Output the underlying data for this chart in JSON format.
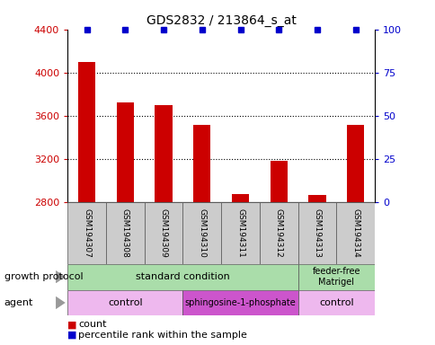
{
  "title": "GDS2832 / 213864_s_at",
  "samples": [
    "GSM194307",
    "GSM194308",
    "GSM194309",
    "GSM194310",
    "GSM194311",
    "GSM194312",
    "GSM194313",
    "GSM194314"
  ],
  "counts": [
    4100,
    3720,
    3700,
    3510,
    2870,
    3180,
    2860,
    3510
  ],
  "percentile_ranks": [
    100,
    100,
    100,
    100,
    100,
    100,
    100,
    100
  ],
  "ylim_left": [
    2800,
    4400
  ],
  "yticks_left": [
    2800,
    3200,
    3600,
    4000,
    4400
  ],
  "ylim_right": [
    0,
    100
  ],
  "yticks_right": [
    0,
    25,
    50,
    75,
    100
  ],
  "bar_color": "#cc0000",
  "dot_color": "#0000cc",
  "sample_box_color": "#cccccc",
  "growth_protocol_color": "#aaddaa",
  "agent_color_light": "#eeb8ee",
  "agent_color_dark": "#cc55cc",
  "legend_count_color": "#cc0000",
  "legend_dot_color": "#0000cc",
  "arrow_color": "#999999"
}
